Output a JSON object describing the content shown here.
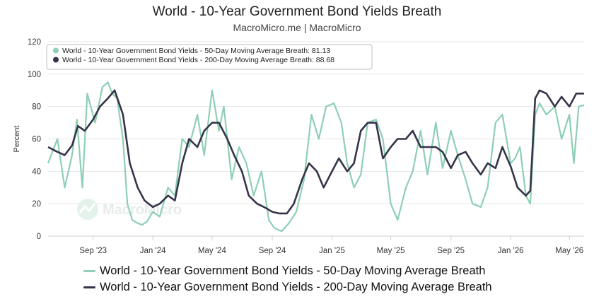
{
  "chart_data": {
    "type": "line",
    "title": "World - 10-Year Government Bond Yields Breath",
    "subtitle": "MacroMicro.me | MacroMicro",
    "ylabel": "Percent",
    "xlabel": "",
    "ylim": [
      0,
      120
    ],
    "yticks": [
      0,
      20,
      40,
      60,
      80,
      100,
      120
    ],
    "xlim": [
      "2023-06-01",
      "2026-05-31"
    ],
    "xticks": [
      {
        "date": "2023-09-01",
        "label": "Sep '23"
      },
      {
        "date": "2024-01-01",
        "label": "Jan '24"
      },
      {
        "date": "2024-05-01",
        "label": "May '24"
      },
      {
        "date": "2024-09-01",
        "label": "Sep '24"
      },
      {
        "date": "2025-01-01",
        "label": "Jan '25"
      },
      {
        "date": "2025-05-01",
        "label": "May '25"
      },
      {
        "date": "2025-09-01",
        "label": "Sep '25"
      },
      {
        "date": "2026-01-01",
        "label": "Jan '26"
      },
      {
        "date": "2026-05-01",
        "label": "May '26"
      }
    ],
    "grid": "horizontal",
    "legend_position": "bottom",
    "watermark": "MacroMicro",
    "tooltip": [
      {
        "text": "World - 10-Year Government Bond Yields - 50-Day Moving Average Breath: 81.13",
        "color": "#8ecfb5"
      },
      {
        "text": "World - 10-Year Government Bond Yields - 200-Day Moving Average Breath: 88.68",
        "color": "#35344a"
      }
    ],
    "series": [
      {
        "name": "World - 10-Year Government Bond Yields - 50-Day Moving Average Breath",
        "color": "#8ecfb5",
        "x": [
          "2023-06-01",
          "2023-06-20",
          "2023-07-05",
          "2023-07-20",
          "2023-07-30",
          "2023-08-10",
          "2023-08-20",
          "2023-09-05",
          "2023-09-20",
          "2023-10-01",
          "2023-10-10",
          "2023-10-20",
          "2023-11-01",
          "2023-11-10",
          "2023-11-20",
          "2023-12-01",
          "2023-12-10",
          "2023-12-20",
          "2024-01-01",
          "2024-01-15",
          "2024-02-01",
          "2024-02-15",
          "2024-03-01",
          "2024-03-15",
          "2024-04-01",
          "2024-04-15",
          "2024-05-01",
          "2024-05-15",
          "2024-05-25",
          "2024-06-10",
          "2024-06-25",
          "2024-07-10",
          "2024-07-25",
          "2024-08-10",
          "2024-08-25",
          "2024-09-05",
          "2024-09-20",
          "2024-10-05",
          "2024-10-20",
          "2024-11-05",
          "2024-11-20",
          "2024-12-05",
          "2024-12-20",
          "2025-01-05",
          "2025-01-20",
          "2025-02-01",
          "2025-02-15",
          "2025-03-01",
          "2025-03-15",
          "2025-04-01",
          "2025-04-15",
          "2025-05-01",
          "2025-05-15",
          "2025-06-01",
          "2025-06-15",
          "2025-07-01",
          "2025-07-15",
          "2025-08-01",
          "2025-08-15",
          "2025-09-01",
          "2025-09-15",
          "2025-10-01",
          "2025-10-15",
          "2025-11-01",
          "2025-11-15",
          "2025-12-01",
          "2025-12-15",
          "2026-01-01",
          "2026-01-10",
          "2026-01-20",
          "2026-02-01",
          "2026-02-10",
          "2026-02-20",
          "2026-03-01",
          "2026-03-15",
          "2026-04-01",
          "2026-04-15",
          "2026-05-01",
          "2026-05-10",
          "2026-05-20",
          "2026-05-31"
        ],
        "y": [
          45,
          60,
          30,
          50,
          72,
          30,
          88,
          70,
          92,
          95,
          88,
          85,
          60,
          20,
          10,
          8,
          7,
          9,
          15,
          12,
          30,
          25,
          60,
          55,
          75,
          50,
          90,
          65,
          80,
          35,
          55,
          45,
          25,
          40,
          10,
          5,
          3,
          8,
          15,
          35,
          75,
          60,
          80,
          82,
          70,
          45,
          30,
          38,
          70,
          72,
          60,
          20,
          10,
          30,
          40,
          65,
          38,
          70,
          42,
          65,
          50,
          35,
          20,
          18,
          30,
          70,
          75,
          45,
          48,
          55,
          25,
          20,
          75,
          82,
          75,
          80,
          60,
          75,
          45,
          80,
          81
        ]
      },
      {
        "name": "World - 10-Year Government Bond Yields - 200-Day Moving Average Breath",
        "color": "#35344a",
        "x": [
          "2023-06-01",
          "2023-06-20",
          "2023-07-05",
          "2023-07-20",
          "2023-08-01",
          "2023-08-15",
          "2023-09-01",
          "2023-09-15",
          "2023-10-01",
          "2023-10-15",
          "2023-11-01",
          "2023-11-15",
          "2023-12-01",
          "2023-12-15",
          "2024-01-01",
          "2024-01-15",
          "2024-02-01",
          "2024-02-15",
          "2024-03-01",
          "2024-03-15",
          "2024-04-01",
          "2024-04-15",
          "2024-05-01",
          "2024-05-15",
          "2024-06-01",
          "2024-06-15",
          "2024-07-01",
          "2024-07-15",
          "2024-08-01",
          "2024-08-15",
          "2024-09-01",
          "2024-09-15",
          "2024-10-01",
          "2024-10-15",
          "2024-11-01",
          "2024-11-15",
          "2024-12-01",
          "2024-12-15",
          "2025-01-01",
          "2025-01-15",
          "2025-02-01",
          "2025-02-15",
          "2025-03-01",
          "2025-03-15",
          "2025-04-01",
          "2025-04-15",
          "2025-05-01",
          "2025-05-15",
          "2025-06-01",
          "2025-06-15",
          "2025-07-01",
          "2025-07-15",
          "2025-08-01",
          "2025-08-15",
          "2025-09-01",
          "2025-09-15",
          "2025-10-01",
          "2025-10-15",
          "2025-11-01",
          "2025-11-15",
          "2025-12-01",
          "2025-12-15",
          "2026-01-01",
          "2026-01-15",
          "2026-02-01",
          "2026-02-10",
          "2026-02-20",
          "2026-03-01",
          "2026-03-15",
          "2026-04-01",
          "2026-04-15",
          "2026-05-01",
          "2026-05-15",
          "2026-05-31"
        ],
        "y": [
          55,
          52,
          50,
          56,
          68,
          65,
          72,
          80,
          85,
          90,
          75,
          45,
          30,
          22,
          18,
          20,
          25,
          22,
          45,
          60,
          55,
          65,
          70,
          70,
          60,
          50,
          40,
          25,
          20,
          18,
          15,
          14,
          14,
          20,
          35,
          45,
          40,
          30,
          40,
          48,
          40,
          45,
          65,
          70,
          70,
          48,
          55,
          60,
          60,
          65,
          55,
          55,
          55,
          52,
          42,
          50,
          52,
          45,
          38,
          45,
          42,
          55,
          43,
          30,
          25,
          28,
          85,
          90,
          88,
          80,
          86,
          80,
          88,
          88
        ]
      }
    ]
  }
}
